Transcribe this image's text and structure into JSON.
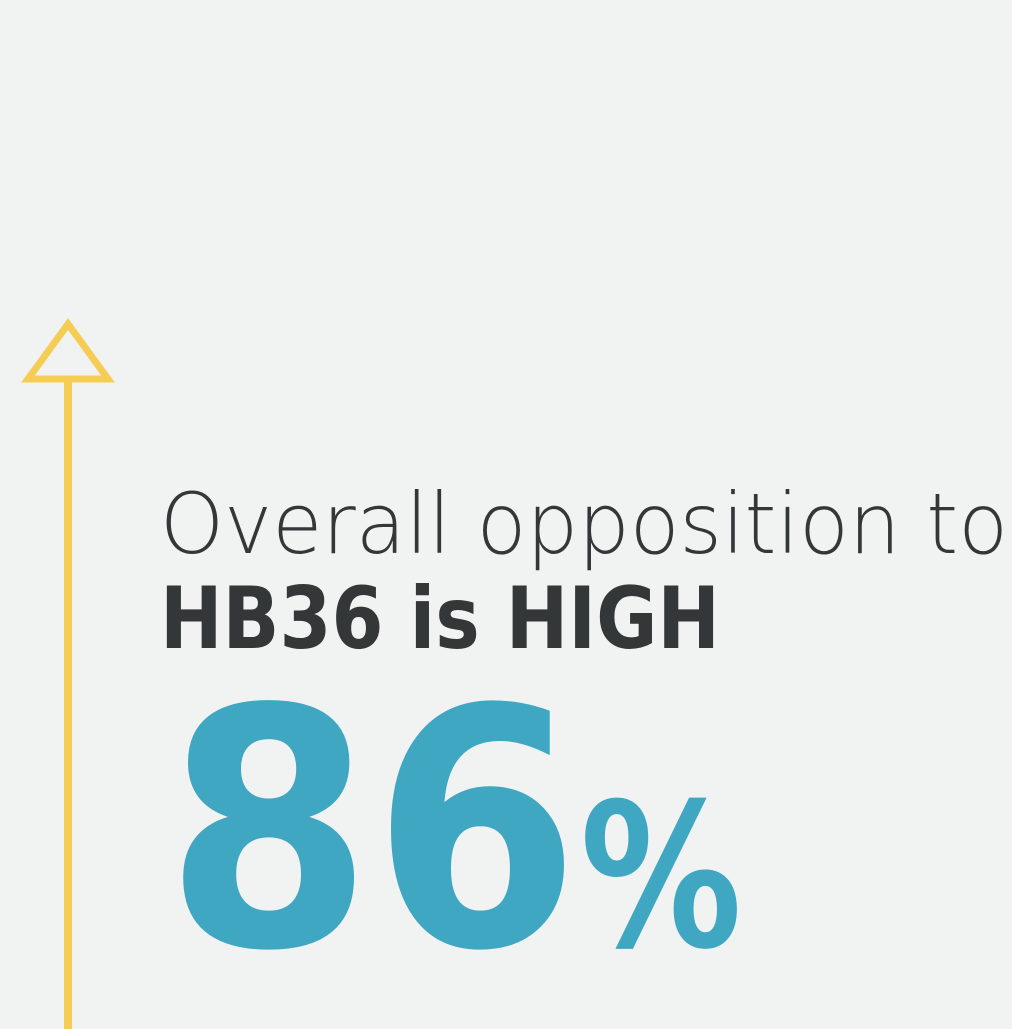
{
  "headline": {
    "line1": "Overall opposition to",
    "line2": "HB36 is HIGH"
  },
  "stat": {
    "number": "86",
    "unit": "%"
  }
}
